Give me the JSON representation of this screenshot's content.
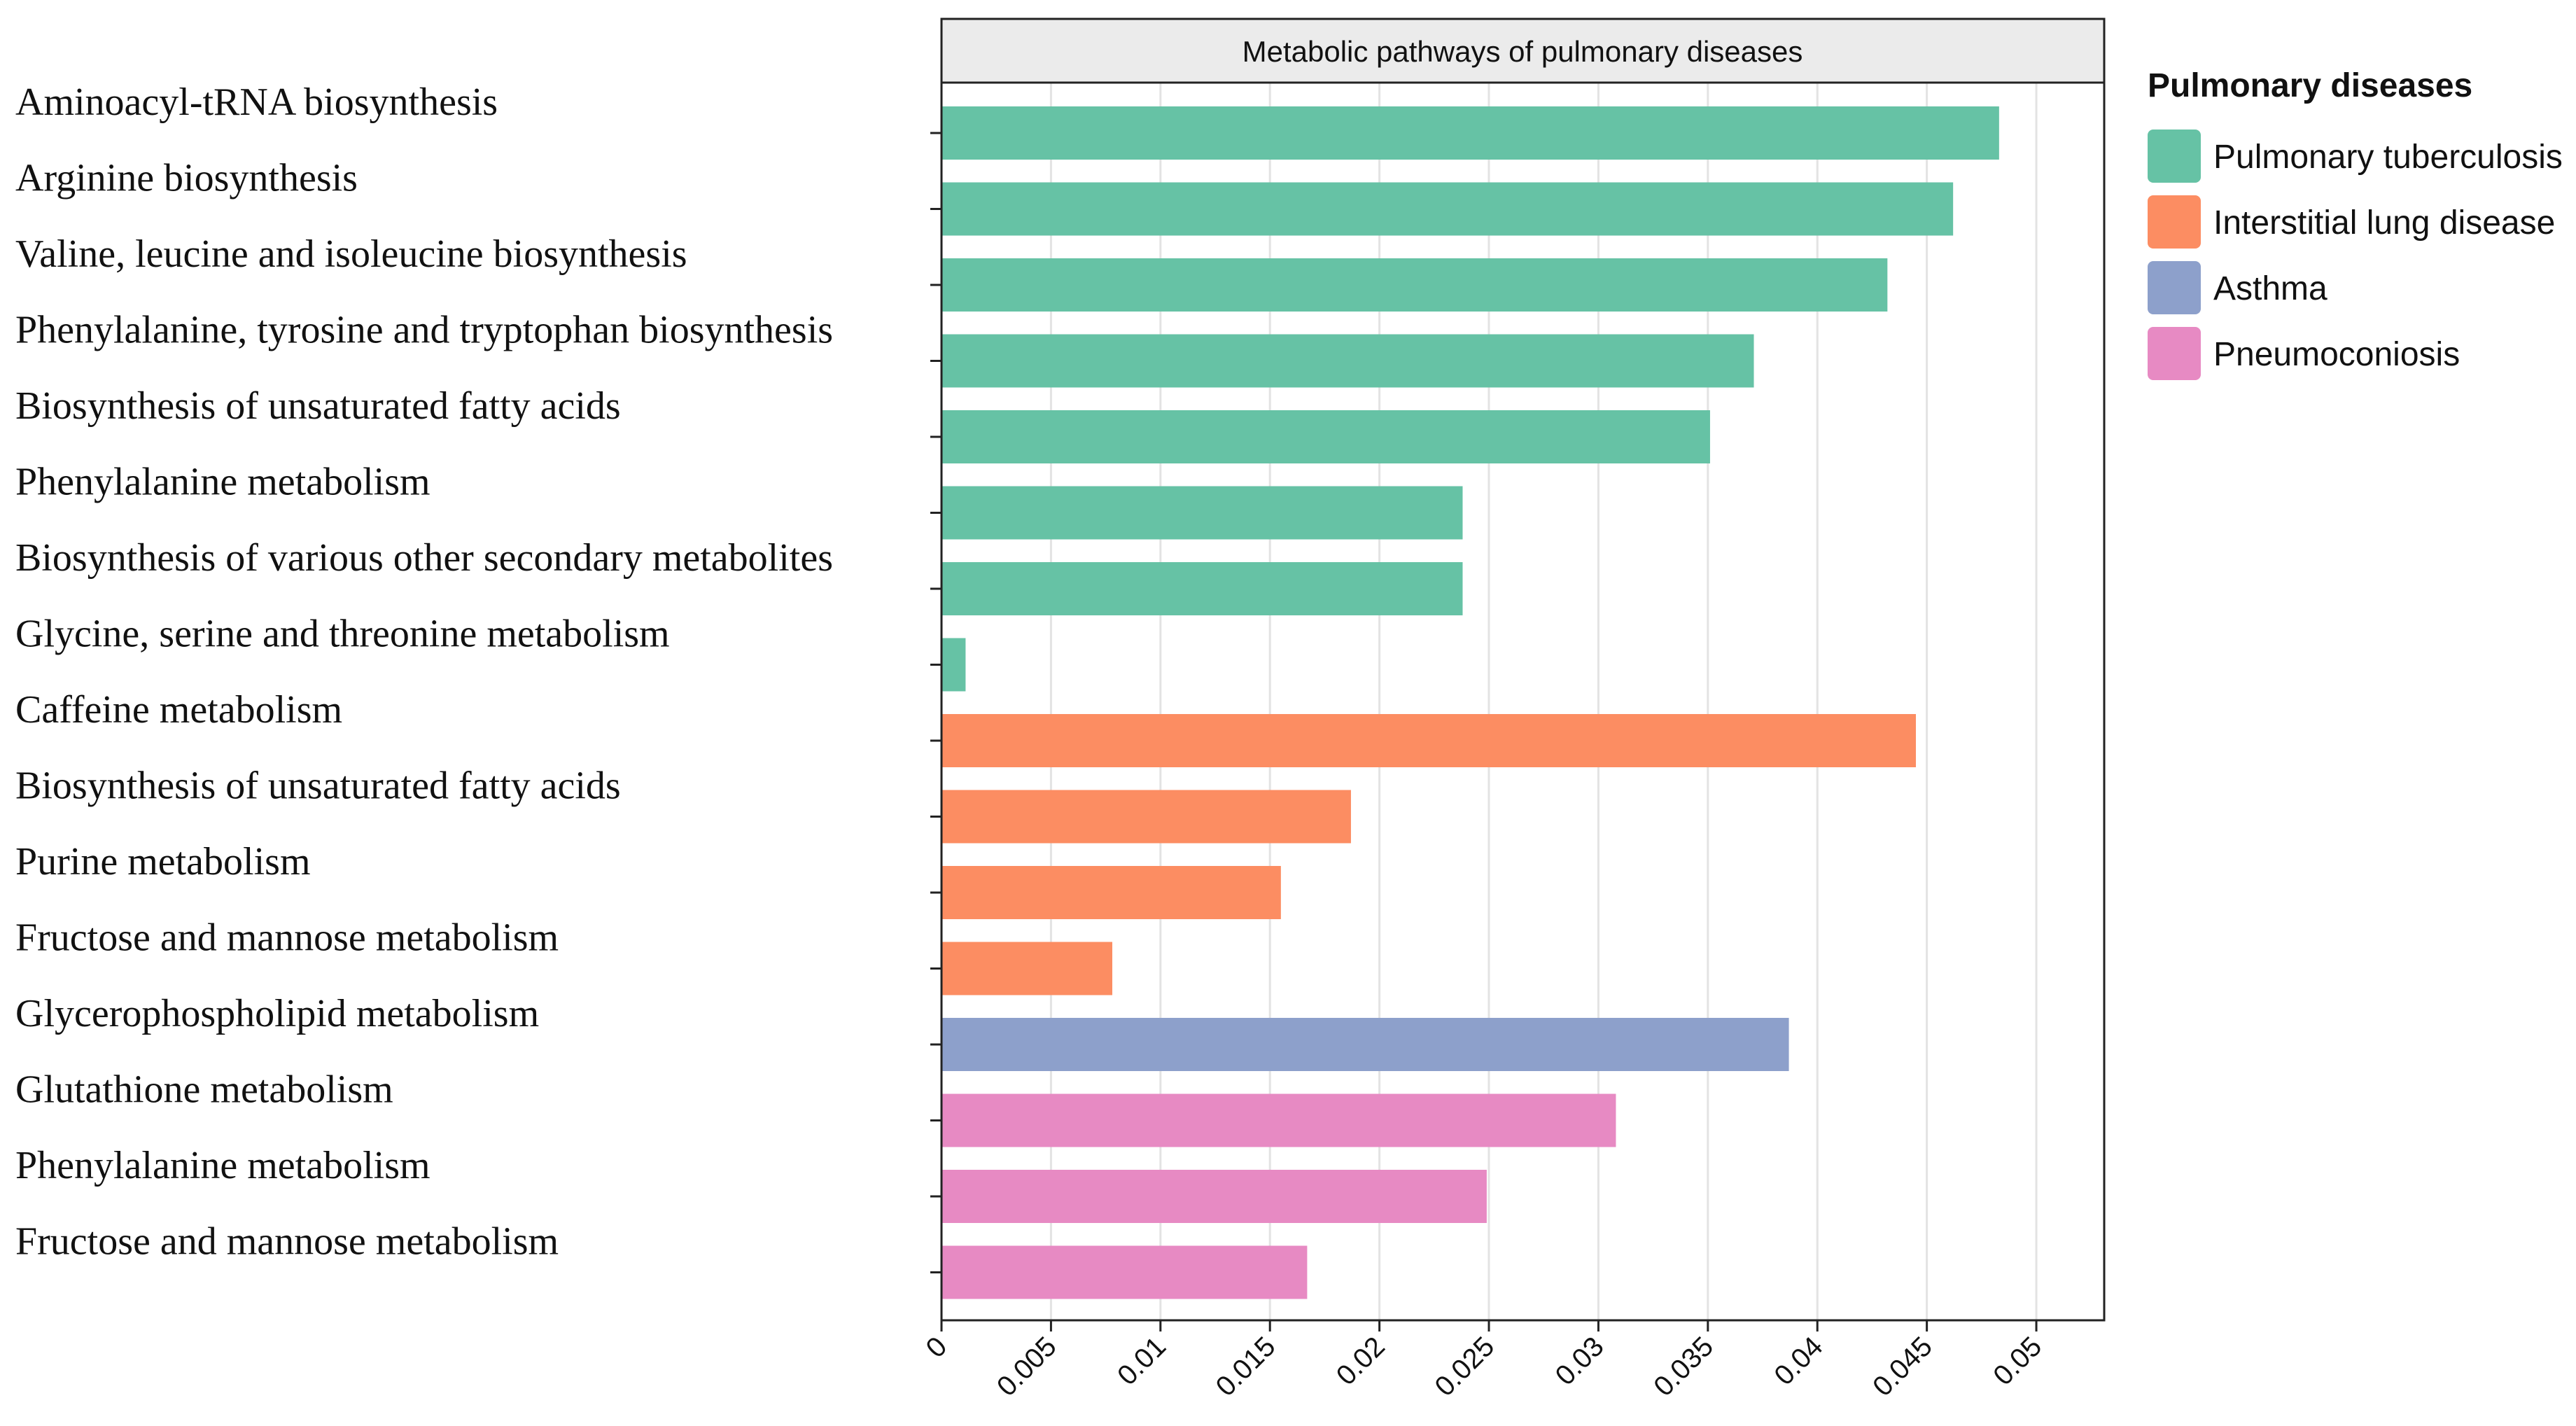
{
  "chart_data": {
    "type": "bar",
    "orientation": "horizontal",
    "title": "Metabolic pathways of pulmonary diseases",
    "xlabel": "",
    "ylabel": "",
    "xlim": [
      0,
      0.0531
    ],
    "x_ticks": [
      "0",
      "0.005",
      "0.01",
      "0.015",
      "0.02",
      "0.025",
      "0.03",
      "0.035",
      "0.04",
      "0.045",
      "0.05"
    ],
    "grid": "vertical",
    "legend": {
      "title": "Pulmonary diseases",
      "position": "right",
      "entries": [
        {
          "name": "Pulmonary tuberculosis",
          "color": "#66c2a5"
        },
        {
          "name": "Interstitial lung disease",
          "color": "#fc8d62"
        },
        {
          "name": "Asthma",
          "color": "#8da0cb"
        },
        {
          "name": "Pneumoconiosis",
          "color": "#e78ac3"
        }
      ]
    },
    "bars": [
      {
        "label": "Aminoacyl-tRNA biosynthesis",
        "value": 0.0483,
        "group": "Pulmonary tuberculosis"
      },
      {
        "label": "Arginine biosynthesis",
        "value": 0.0462,
        "group": "Pulmonary tuberculosis"
      },
      {
        "label": "Valine, leucine and isoleucine biosynthesis",
        "value": 0.0432,
        "group": "Pulmonary tuberculosis"
      },
      {
        "label": "Phenylalanine, tyrosine and tryptophan biosynthesis",
        "value": 0.0371,
        "group": "Pulmonary tuberculosis"
      },
      {
        "label": "Biosynthesis of unsaturated fatty acids",
        "value": 0.0351,
        "group": "Pulmonary tuberculosis"
      },
      {
        "label": "Phenylalanine metabolism",
        "value": 0.0238,
        "group": "Pulmonary tuberculosis"
      },
      {
        "label": "Biosynthesis of various other secondary metabolites",
        "value": 0.0238,
        "group": "Pulmonary tuberculosis"
      },
      {
        "label": "Glycine, serine and threonine metabolism",
        "value": 0.0011,
        "group": "Pulmonary tuberculosis"
      },
      {
        "label": "Caffeine metabolism",
        "value": 0.0445,
        "group": "Interstitial lung disease"
      },
      {
        "label": "Biosynthesis of unsaturated fatty acids",
        "value": 0.0187,
        "group": "Interstitial lung disease"
      },
      {
        "label": "Purine metabolism",
        "value": 0.0155,
        "group": "Interstitial lung disease"
      },
      {
        "label": "Fructose and mannose metabolism",
        "value": 0.0078,
        "group": "Interstitial lung disease"
      },
      {
        "label": "Glycerophospholipid metabolism",
        "value": 0.0387,
        "group": "Asthma"
      },
      {
        "label": "Glutathione metabolism",
        "value": 0.0308,
        "group": "Pneumoconiosis"
      },
      {
        "label": "Phenylalanine metabolism",
        "value": 0.0249,
        "group": "Pneumoconiosis"
      },
      {
        "label": "Fructose and mannose metabolism",
        "value": 0.0167,
        "group": "Pneumoconiosis"
      }
    ]
  }
}
